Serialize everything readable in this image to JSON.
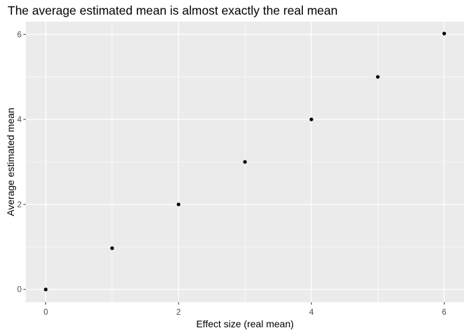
{
  "chart_data": {
    "type": "scatter",
    "title": "The average estimated mean is almost exactly the real mean",
    "xlabel": "Effect size (real mean)",
    "ylabel": "Average estimated mean",
    "x": [
      0,
      1,
      2,
      3,
      4,
      5,
      6
    ],
    "y": [
      0,
      0.97,
      2.0,
      3.0,
      4.0,
      5.0,
      6.02
    ],
    "xlim": [
      -0.3,
      6.3
    ],
    "ylim": [
      -0.3,
      6.3
    ],
    "xticks": [
      0,
      2,
      4,
      6
    ],
    "yticks": [
      0,
      2,
      4,
      6
    ],
    "xtick_labels": [
      "0",
      "2",
      "4",
      "6"
    ],
    "ytick_labels": [
      "0",
      "2",
      "4",
      "6"
    ],
    "grid": true,
    "panel_background": "#ebebeb",
    "grid_color": "#ffffff",
    "point_color": "#000000"
  }
}
